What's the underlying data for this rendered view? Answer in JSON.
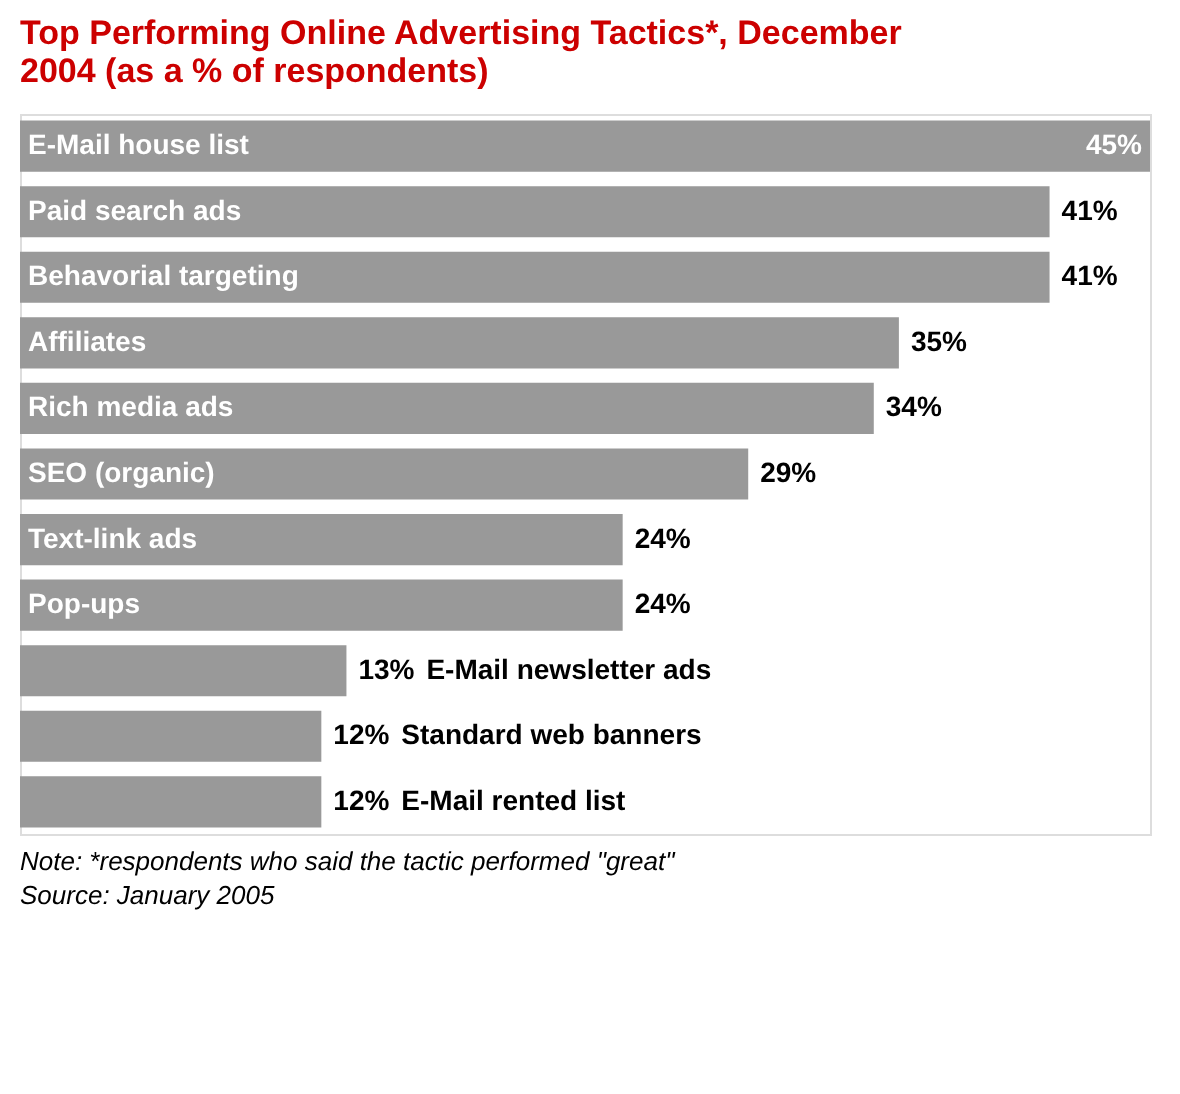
{
  "chart_data": {
    "type": "bar",
    "orientation": "horizontal",
    "title": "Top Performing Online Advertising Tactics*, December 2004 (as a % of respondents)",
    "categories": [
      "E-Mail house list",
      "Paid search ads",
      "Behavorial targeting",
      "Affiliates",
      "Rich media ads",
      "SEO (organic)",
      "Text-link ads",
      "Pop-ups",
      "E-Mail newsletter ads",
      "Standard web banners",
      "E-Mail rented list"
    ],
    "values": [
      45,
      41,
      41,
      35,
      34,
      29,
      24,
      24,
      13,
      12,
      12
    ],
    "value_labels": [
      "45%",
      "41%",
      "41%",
      "35%",
      "34%",
      "29%",
      "24%",
      "24%",
      "13%",
      "12%",
      "12%"
    ],
    "color": "#999999",
    "xlim": [
      0,
      45
    ],
    "annotations": [
      "Note: *respondents who said the tactic performed \"great\"",
      "Source: January 2005"
    ]
  }
}
